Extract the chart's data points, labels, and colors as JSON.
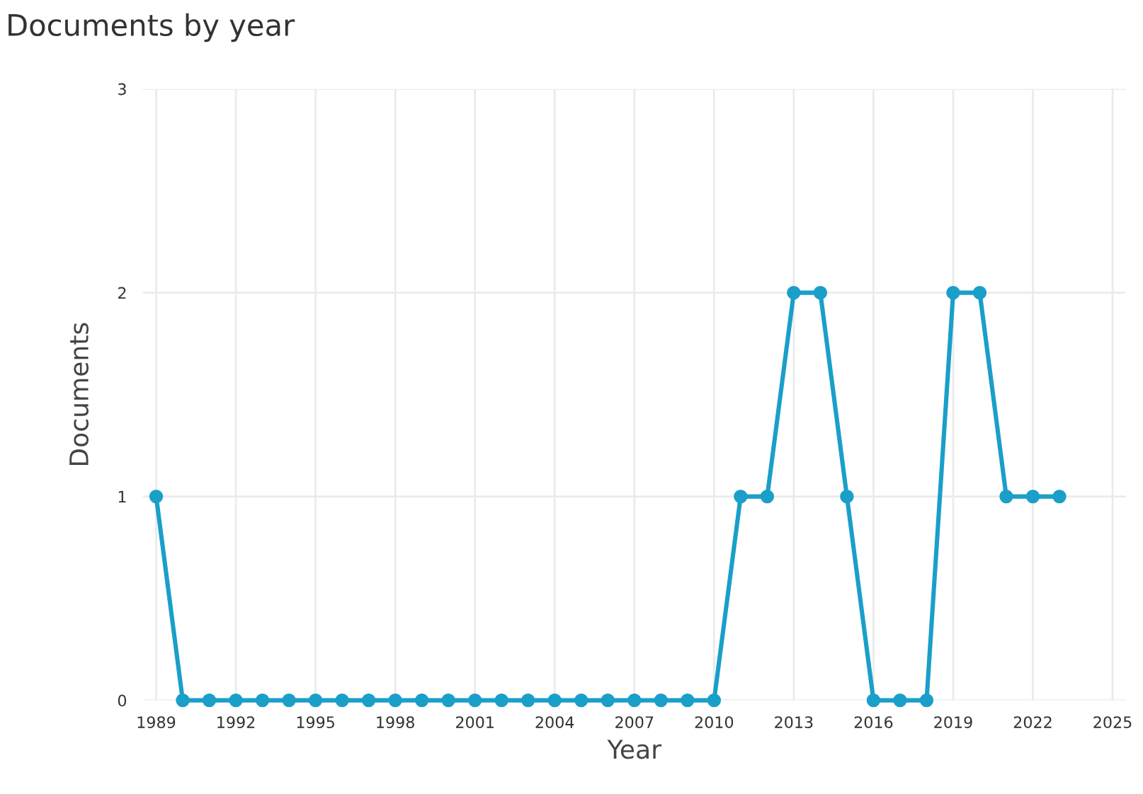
{
  "chart_data": {
    "type": "line",
    "title": "Documents by year",
    "xlabel": "Year",
    "ylabel": "Documents",
    "x": [
      1989,
      1990,
      1991,
      1992,
      1993,
      1994,
      1995,
      1996,
      1997,
      1998,
      1999,
      2000,
      2001,
      2002,
      2003,
      2004,
      2005,
      2006,
      2007,
      2008,
      2009,
      2010,
      2011,
      2012,
      2013,
      2014,
      2015,
      2016,
      2017,
      2018,
      2019,
      2020,
      2021,
      2022,
      2023
    ],
    "series": [
      {
        "color": "#1a9fc9",
        "values": [
          1,
          0,
          0,
          0,
          0,
          0,
          0,
          0,
          0,
          0,
          0,
          0,
          0,
          0,
          0,
          0,
          0,
          0,
          0,
          0,
          0,
          0,
          1,
          1,
          2,
          2,
          1,
          0,
          0,
          0,
          2,
          2,
          1,
          1,
          1
        ]
      }
    ],
    "xlim": [
      1988.5,
      2025.5
    ],
    "xticks": [
      1989,
      1992,
      1995,
      1998,
      2001,
      2004,
      2007,
      2010,
      2013,
      2016,
      2019,
      2022,
      2025
    ],
    "ylim": [
      0,
      3
    ],
    "yticks": [
      0,
      1,
      2,
      3
    ],
    "grid": true,
    "marker": "circle",
    "line_style": "solid",
    "legend": false
  }
}
